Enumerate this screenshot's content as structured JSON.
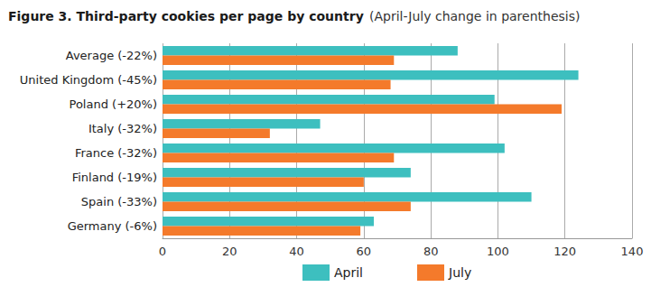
{
  "chart_data": {
    "type": "bar",
    "title": "Figure 3. Third-party cookies per page by country",
    "subtitle": "(April-July change in parenthesis)",
    "orientation": "horizontal",
    "categories": [
      "Average (-22%)",
      "United Kingdom (-45%)",
      "Poland (+20%)",
      "Italy (-32%)",
      "France (-32%)",
      "Finland (-19%)",
      "Spain (-33%)",
      "Germany (-6%)"
    ],
    "series": [
      {
        "name": "April",
        "color": "#3dbfbf",
        "values": [
          88,
          124,
          99,
          47,
          102,
          74,
          110,
          63
        ]
      },
      {
        "name": "July",
        "color": "#f47a2b",
        "values": [
          69,
          68,
          119,
          32,
          69,
          60,
          74,
          59
        ]
      }
    ],
    "xlim": [
      0,
      140
    ],
    "xticks": [
      0,
      20,
      40,
      60,
      80,
      100,
      120,
      140
    ],
    "grid": true,
    "legend": "bottom"
  }
}
